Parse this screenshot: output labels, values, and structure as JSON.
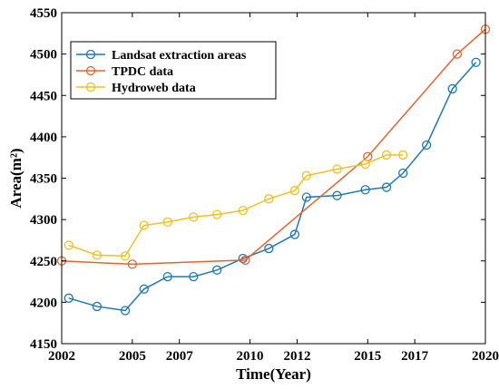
{
  "chart_data": {
    "type": "line",
    "xlabel": "Time(Year)",
    "ylabel": "Area(m²)",
    "xlim": [
      2002,
      2020
    ],
    "ylim": [
      4150,
      4550
    ],
    "xticks": [
      2002,
      2005,
      2007,
      2010,
      2012,
      2015,
      2017,
      2020
    ],
    "yticks": [
      4150,
      4200,
      4250,
      4300,
      4350,
      4400,
      4450,
      4500,
      4550
    ],
    "grid": false,
    "legend_position": "top-left",
    "series": [
      {
        "name": "Landsat extraction areas",
        "color": "#1f77b4",
        "x": [
          2002.3,
          2003.5,
          2004.7,
          2005.5,
          2006.5,
          2007.6,
          2008.6,
          2009.7,
          2010.8,
          2011.9,
          2012.4,
          2013.7,
          2014.9,
          2015.8,
          2016.5,
          2017.5,
          2018.6,
          2019.6
        ],
        "y": [
          4205,
          4195,
          4190,
          4216,
          4231,
          4231,
          4239,
          4253,
          4265,
          4282,
          4327,
          4329,
          4336,
          4339,
          4356,
          4390,
          4458,
          4490
        ]
      },
      {
        "name": "TPDC data",
        "color": "#e8622c",
        "x": [
          2002.0,
          2005.0,
          2009.8,
          2015.0,
          2018.8,
          2020.0
        ],
        "y": [
          4250,
          4246,
          4251,
          4376,
          4500,
          4530
        ]
      },
      {
        "name": "Hydroweb data",
        "color": "#f0c020",
        "x": [
          2002.3,
          2003.5,
          2004.7,
          2005.5,
          2006.5,
          2007.6,
          2008.6,
          2009.7,
          2010.8,
          2011.9,
          2012.4,
          2013.7,
          2014.9,
          2015.8,
          2016.5
        ],
        "y": [
          4269,
          4257,
          4256,
          4293,
          4297,
          4303,
          4306,
          4311,
          4325,
          4335,
          4353,
          4361,
          4367,
          4378,
          4378
        ]
      }
    ]
  }
}
